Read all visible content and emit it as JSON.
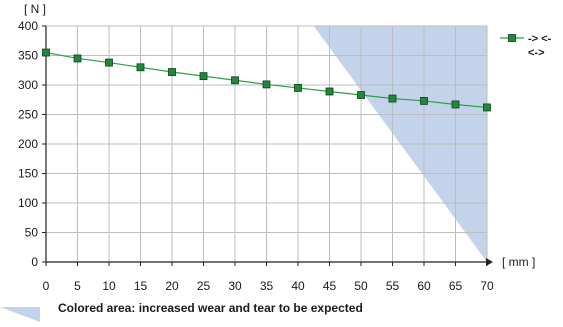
{
  "chart_data": {
    "type": "line",
    "y_unit_label": "[ N ]",
    "x_unit_label": "[ mm ]",
    "xlim": [
      0,
      70
    ],
    "ylim": [
      0,
      400
    ],
    "x_ticks": [
      0,
      5,
      10,
      15,
      20,
      25,
      30,
      35,
      40,
      45,
      50,
      55,
      60,
      65,
      70
    ],
    "y_ticks": [
      0,
      50,
      100,
      150,
      200,
      250,
      300,
      350,
      400
    ],
    "grid": true,
    "series": [
      {
        "name": "-> <-",
        "x": [
          0,
          5,
          10,
          15,
          20,
          25,
          30,
          35,
          40,
          45,
          50,
          55,
          60,
          65,
          70
        ],
        "y": [
          355,
          345,
          338,
          330,
          322,
          315,
          308,
          301,
          295,
          289,
          283,
          277,
          273,
          267,
          262
        ],
        "line_color": "#2e9e47",
        "marker_fill": "#1f8a3c"
      }
    ],
    "legend_extra": "<->",
    "legend_position": "top-right",
    "shaded_region": {
      "polygon": [
        [
          42.5,
          400
        ],
        [
          70,
          400
        ],
        [
          70,
          0
        ]
      ],
      "color": "#c3d3ec"
    },
    "footnote": "Colored area: increased wear and tear to be expected"
  }
}
